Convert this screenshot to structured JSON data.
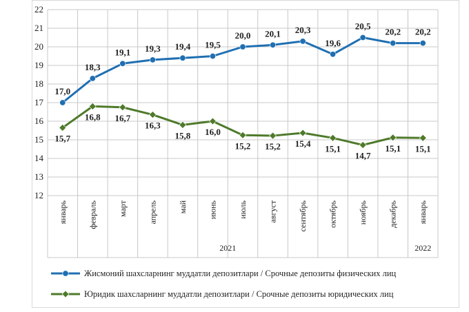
{
  "chart_data": {
    "type": "line",
    "categories": [
      "январь",
      "февраль",
      "март",
      "апрель",
      "май",
      "июнь",
      "июль",
      "август",
      "сентябрь",
      "октябрь",
      "ноябрь",
      "декабрь",
      "январь"
    ],
    "years": [
      {
        "label": "2021",
        "from": 0,
        "to": 11
      },
      {
        "label": "2022",
        "from": 12,
        "to": 12
      }
    ],
    "ylim": [
      12,
      22
    ],
    "yticks": [
      12,
      13,
      14,
      15,
      16,
      17,
      18,
      19,
      20,
      21,
      22
    ],
    "grid": true,
    "legend_position": "bottom",
    "series": [
      {
        "name": "Жисмоний шахсларнинг муддатли депозитлари / Срочные депозиты физических лиц",
        "values": [
          17.0,
          18.3,
          19.1,
          19.3,
          19.4,
          19.5,
          20.0,
          20.1,
          20.3,
          19.6,
          20.5,
          20.2,
          20.2
        ],
        "labels": [
          "17,0",
          "18,3",
          "19,1",
          "19,3",
          "19,4",
          "19,5",
          "20,0",
          "20,1",
          "20,3",
          "19,6",
          "20,5",
          "20,2",
          "20,2"
        ],
        "color": "#1f6fb2",
        "marker": "circle",
        "label_position": "above"
      },
      {
        "name": "Юридик шахсларнинг муддатли депозитлари / Срочные депозиты юридических лиц",
        "values": [
          15.65,
          16.8,
          16.75,
          16.35,
          15.8,
          16.0,
          15.25,
          15.22,
          15.37,
          15.1,
          14.72,
          15.12,
          15.1
        ],
        "labels": [
          "15,7",
          "16,8",
          "16,7",
          "16,3",
          "15,8",
          "16,0",
          "15,2",
          "15,2",
          "15,4",
          "15,1",
          "14,7",
          "15,1",
          "15,1"
        ],
        "color": "#4e7a2a",
        "marker": "diamond",
        "label_position": "below"
      }
    ]
  }
}
